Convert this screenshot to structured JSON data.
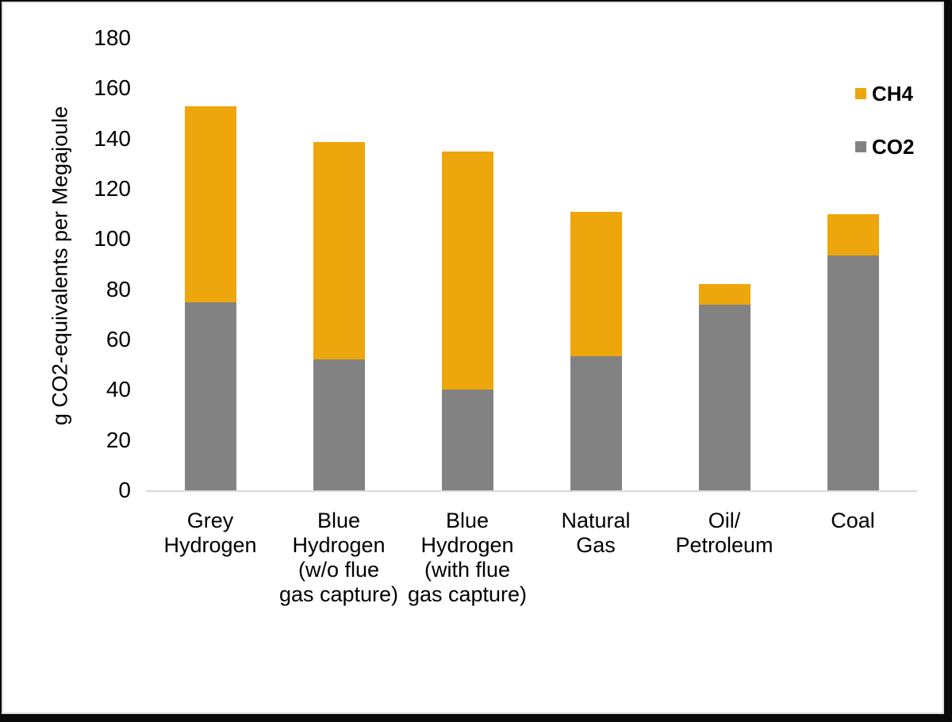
{
  "chart_data": {
    "type": "bar",
    "stacked": true,
    "title": "",
    "xlabel": "",
    "ylabel": "g CO2-equivalents per Megajoule",
    "ylim": [
      0,
      180
    ],
    "yticks": [
      0,
      20,
      40,
      60,
      80,
      100,
      120,
      140,
      160,
      180
    ],
    "grid": false,
    "legend_position": "top-right",
    "background": "#FFFFFF",
    "axis_line_color": "#D9D9D9",
    "frame_color": "#0A0A0A",
    "categories": [
      "Grey\nHydrogen",
      "Blue\nHydrogen\n(w/o flue\ngas capture)",
      "Blue\nHydrogen\n(with flue\ngas capture)",
      "Natural\nGas",
      "Oil/\nPetroleum",
      "Coal"
    ],
    "stack_order_bottom_to_top": [
      "CO2",
      "CH4"
    ],
    "series": [
      {
        "name": "CH4",
        "color": "#EDA60B",
        "values": [
          78,
          86.5,
          95,
          57.5,
          8,
          16.5
        ]
      },
      {
        "name": "CO2",
        "color": "#828282",
        "values": [
          75,
          52,
          40,
          53.5,
          74,
          93.5
        ]
      }
    ],
    "totals": [
      153,
      138.5,
      135,
      111,
      82,
      110
    ]
  }
}
